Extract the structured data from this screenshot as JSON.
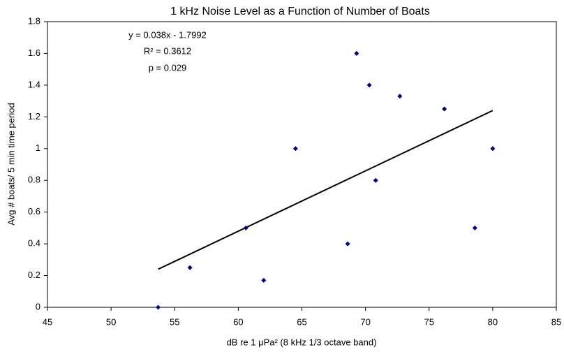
{
  "chart_data": {
    "type": "scatter",
    "title": "1 kHz Noise Level as a Function of Number of Boats",
    "x_label": "dB re 1 μPa² (8 kHz 1/3 octave band)",
    "y_label": "Avg # boats/ 5 min time period",
    "annotations": [
      "y = 0.038x - 1.7992",
      "R² = 0.3612",
      "p = 0.029"
    ],
    "series": [
      {
        "color": "#00007f",
        "x": [
          53.7,
          56.2,
          60.6,
          62.0,
          64.5,
          68.6,
          69.3,
          70.3,
          70.8,
          72.7,
          76.2,
          78.6,
          80.0
        ],
        "values": [
          0,
          0.25,
          0.5,
          0.17,
          1.0,
          0.4,
          1.6,
          1.4,
          0.8,
          1.33,
          1.25,
          0.5,
          1.0
        ]
      }
    ],
    "trendline": {
      "color": "#000000",
      "x": [
        53.7,
        80.0
      ],
      "values": [
        0.24,
        1.24
      ]
    },
    "xlim": [
      45,
      85
    ],
    "xticks": [
      45,
      50,
      55,
      60,
      65,
      70,
      75,
      80,
      85
    ],
    "ylim": [
      0,
      1.8
    ],
    "yticks": [
      0,
      0.2,
      0.4,
      0.6,
      0.8,
      1,
      1.2,
      1.4,
      1.6,
      1.8
    ],
    "grid": false
  }
}
